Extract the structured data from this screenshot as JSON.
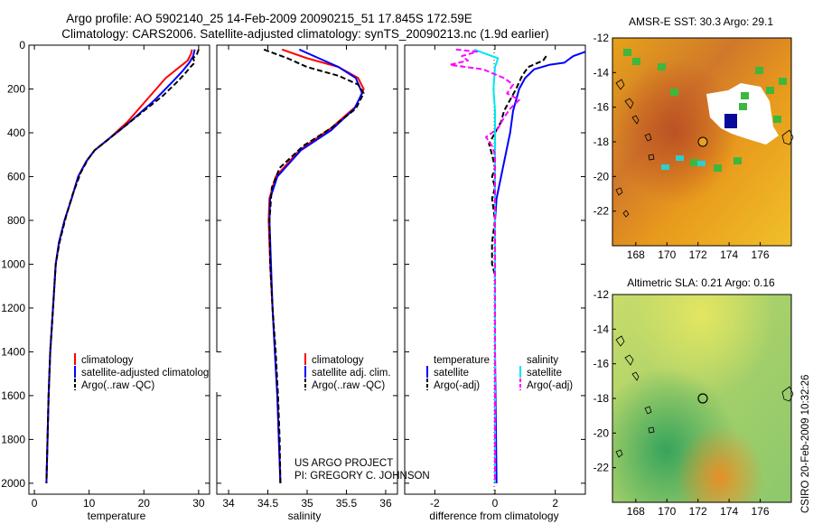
{
  "title": {
    "line1": "Argo profile: AO 5902140_25 14-Feb-2009 20090215_51 17.845S 172.59E",
    "line2": "Climatology: CARS2006. Satellite-adjusted climatology: synTS_20090213.nc (1.9d earlier)"
  },
  "side_label": "CSIRO 20-Feb-2009 10:32:26",
  "project": {
    "line1": "US ARGO PROJECT",
    "line2": "PI: GREGORY C. JOHNSON"
  },
  "colors": {
    "climatology": "#ff0000",
    "satellite": "#0000ff",
    "argo": "#000000",
    "argo_salt_adj": "#ff00ff",
    "sat_salt": "#00e5ee"
  },
  "chart_data": [
    {
      "id": "temperature",
      "type": "line",
      "xlabel": "temperature",
      "ylabel": "",
      "xlim": [
        -1,
        32
      ],
      "ylim": [
        2050,
        0
      ],
      "xticks": [
        0,
        10,
        20,
        30
      ],
      "yticks": [
        0,
        200,
        400,
        600,
        800,
        1000,
        1200,
        1400,
        1600,
        1800,
        2000
      ],
      "legend": [
        "climatology",
        "satellite-adjusted climatology",
        "Argo(..raw -QC)"
      ],
      "series": [
        {
          "name": "climatology",
          "color": "#ff0000",
          "dash": "",
          "points": [
            [
              28.8,
              20
            ],
            [
              28.6,
              40
            ],
            [
              28.0,
              70
            ],
            [
              26.5,
              100
            ],
            [
              24.0,
              150
            ],
            [
              20.5,
              250
            ],
            [
              17.0,
              350
            ],
            [
              13.5,
              430
            ],
            [
              11.0,
              480
            ],
            [
              9.5,
              530
            ],
            [
              8.0,
              600
            ],
            [
              6.8,
              700
            ],
            [
              5.5,
              800
            ],
            [
              4.5,
              900
            ],
            [
              3.9,
              1000
            ],
            [
              3.4,
              1200
            ],
            [
              2.9,
              1400
            ],
            [
              2.6,
              1600
            ],
            [
              2.4,
              1800
            ],
            [
              2.2,
              2000
            ]
          ]
        },
        {
          "name": "satellite",
          "color": "#0000ff",
          "dash": "",
          "points": [
            [
              29.3,
              20
            ],
            [
              29.0,
              50
            ],
            [
              28.3,
              80
            ],
            [
              27.0,
              120
            ],
            [
              25.5,
              160
            ],
            [
              22.0,
              250
            ],
            [
              17.0,
              360
            ],
            [
              13.5,
              430
            ],
            [
              11.0,
              480
            ],
            [
              9.5,
              530
            ],
            [
              8.0,
              600
            ],
            [
              6.8,
              700
            ],
            [
              5.5,
              800
            ],
            [
              4.5,
              900
            ],
            [
              3.9,
              1000
            ],
            [
              3.4,
              1200
            ],
            [
              2.9,
              1400
            ],
            [
              2.6,
              1600
            ],
            [
              2.4,
              1800
            ],
            [
              2.2,
              2000
            ]
          ]
        },
        {
          "name": "Argo",
          "color": "#000000",
          "dash": "6,3",
          "points": [
            [
              30.0,
              20
            ],
            [
              29.7,
              40
            ],
            [
              29.0,
              60
            ],
            [
              29.3,
              80
            ],
            [
              28.5,
              100
            ],
            [
              27.5,
              130
            ],
            [
              26.0,
              170
            ],
            [
              23.5,
              230
            ],
            [
              20.0,
              300
            ],
            [
              16.5,
              370
            ],
            [
              13.0,
              440
            ],
            [
              11.0,
              480
            ],
            [
              9.8,
              520
            ],
            [
              8.5,
              580
            ],
            [
              7.0,
              680
            ],
            [
              5.8,
              780
            ],
            [
              4.6,
              900
            ],
            [
              3.9,
              1000
            ],
            [
              3.4,
              1200
            ],
            [
              2.9,
              1400
            ],
            [
              2.6,
              1600
            ],
            [
              2.4,
              1800
            ],
            [
              2.2,
              2000
            ]
          ]
        }
      ]
    },
    {
      "id": "salinity",
      "type": "line",
      "xlabel": "salinity",
      "ylabel": "",
      "xlim": [
        33.85,
        36.15
      ],
      "ylim": [
        2050,
        0
      ],
      "xticks": [
        34,
        34.5,
        35,
        35.5,
        36
      ],
      "legend": [
        "climatology",
        "satellite adj. clim.",
        "Argo(..raw -QC)"
      ],
      "series": [
        {
          "name": "climatology",
          "color": "#ff0000",
          "dash": "",
          "points": [
            [
              34.68,
              20
            ],
            [
              35.0,
              60
            ],
            [
              35.4,
              100
            ],
            [
              35.65,
              150
            ],
            [
              35.72,
              200
            ],
            [
              35.62,
              280
            ],
            [
              35.3,
              380
            ],
            [
              34.9,
              480
            ],
            [
              34.6,
              600
            ],
            [
              34.52,
              700
            ],
            [
              34.51,
              800
            ],
            [
              34.53,
              1000
            ],
            [
              34.56,
              1200
            ],
            [
              34.59,
              1400
            ],
            [
              34.62,
              1600
            ],
            [
              34.64,
              1800
            ],
            [
              34.66,
              2000
            ]
          ]
        },
        {
          "name": "satellite",
          "color": "#0000ff",
          "dash": "",
          "points": [
            [
              34.9,
              20
            ],
            [
              35.15,
              60
            ],
            [
              35.4,
              100
            ],
            [
              35.62,
              150
            ],
            [
              35.7,
              220
            ],
            [
              35.6,
              290
            ],
            [
              35.3,
              390
            ],
            [
              34.92,
              480
            ],
            [
              34.62,
              600
            ],
            [
              34.53,
              700
            ],
            [
              34.52,
              800
            ],
            [
              34.54,
              1000
            ],
            [
              34.56,
              1200
            ],
            [
              34.59,
              1400
            ],
            [
              34.62,
              1600
            ],
            [
              34.64,
              1800
            ],
            [
              34.66,
              2000
            ]
          ]
        },
        {
          "name": "Argo",
          "color": "#000000",
          "dash": "6,3",
          "points": [
            [
              34.45,
              20
            ],
            [
              34.6,
              40
            ],
            [
              34.75,
              60
            ],
            [
              35.0,
              100
            ],
            [
              35.4,
              140
            ],
            [
              35.65,
              180
            ],
            [
              35.72,
              220
            ],
            [
              35.62,
              290
            ],
            [
              35.3,
              380
            ],
            [
              34.95,
              460
            ],
            [
              34.65,
              560
            ],
            [
              34.55,
              650
            ],
            [
              34.52,
              800
            ],
            [
              34.53,
              1000
            ],
            [
              34.56,
              1200
            ],
            [
              34.6,
              1400
            ],
            [
              34.63,
              1600
            ],
            [
              34.65,
              1800
            ],
            [
              34.66,
              2000
            ]
          ]
        }
      ]
    },
    {
      "id": "difference",
      "type": "line",
      "xlabel": "difference from climatology",
      "ylabel": "",
      "xlim": [
        -3,
        3
      ],
      "ylim": [
        2050,
        0
      ],
      "xticks": [
        -2,
        0,
        2
      ],
      "legend_titles": [
        "temperature",
        "salinity"
      ],
      "legend": [
        "satellite",
        "Argo(-adj)",
        "satellite",
        "Argo(-adj)"
      ],
      "series": [
        {
          "name": "temperature satellite",
          "color": "#0000ff",
          "dash": "",
          "points": [
            [
              3.0,
              30
            ],
            [
              2.6,
              50
            ],
            [
              2.5,
              60
            ],
            [
              2.3,
              80
            ],
            [
              1.8,
              90
            ],
            [
              1.3,
              110
            ],
            [
              1.0,
              150
            ],
            [
              0.8,
              200
            ],
            [
              0.6,
              300
            ],
            [
              0.5,
              400
            ],
            [
              0.35,
              500
            ],
            [
              0.2,
              600
            ],
            [
              0.05,
              700
            ],
            [
              0.0,
              800
            ],
            [
              0.0,
              1000
            ],
            [
              0.0,
              1400
            ],
            [
              0.05,
              2000
            ]
          ]
        },
        {
          "name": "temperature Argo",
          "color": "#000000",
          "dash": "6,3",
          "points": [
            [
              1.7,
              50
            ],
            [
              1.6,
              70
            ],
            [
              1.1,
              100
            ],
            [
              0.9,
              140
            ],
            [
              0.7,
              200
            ],
            [
              0.3,
              300
            ],
            [
              0.2,
              350
            ],
            [
              0.0,
              400
            ],
            [
              -0.2,
              450
            ],
            [
              -0.1,
              500
            ],
            [
              0.0,
              560
            ],
            [
              -0.1,
              600
            ],
            [
              0.0,
              650
            ],
            [
              -0.1,
              700
            ],
            [
              0.0,
              800
            ],
            [
              -0.1,
              900
            ],
            [
              -0.1,
              1000
            ],
            [
              0.0,
              1050
            ],
            [
              0.0,
              1400
            ],
            [
              0.0,
              2000
            ]
          ]
        },
        {
          "name": "salinity satellite",
          "color": "#00e5ee",
          "dash": "",
          "points": [
            [
              -0.7,
              20
            ],
            [
              -0.3,
              40
            ],
            [
              0.1,
              60
            ],
            [
              0.0,
              100
            ],
            [
              -0.05,
              200
            ],
            [
              0.0,
              300
            ],
            [
              0.0,
              400
            ],
            [
              0.0,
              600
            ],
            [
              0.0,
              800
            ],
            [
              0.0,
              1000
            ],
            [
              0.0,
              1500
            ],
            [
              0.0,
              2000
            ]
          ]
        },
        {
          "name": "salinity Argo",
          "color": "#ff00ff",
          "dash": "6,3",
          "points": [
            [
              -1.3,
              20
            ],
            [
              -0.6,
              30
            ],
            [
              -1.1,
              50
            ],
            [
              -0.9,
              70
            ],
            [
              -1.5,
              90
            ],
            [
              -0.4,
              110
            ],
            [
              0.3,
              150
            ],
            [
              0.6,
              180
            ],
            [
              0.4,
              220
            ],
            [
              0.8,
              250
            ],
            [
              0.5,
              290
            ],
            [
              0.3,
              330
            ],
            [
              0.1,
              380
            ],
            [
              -0.3,
              420
            ],
            [
              -0.1,
              460
            ],
            [
              0.0,
              500
            ],
            [
              0.0,
              1000
            ],
            [
              0.0,
              2000
            ]
          ]
        }
      ]
    },
    {
      "id": "sst-map",
      "type": "heatmap",
      "title": "AMSR-E SST: 30.3 Argo: 29.1",
      "xlim": [
        166.5,
        178
      ],
      "ylim": [
        -24,
        -12
      ],
      "xticks": [
        168,
        170,
        172,
        174,
        176
      ],
      "yticks": [
        -12,
        -14,
        -16,
        -18,
        -20,
        -22
      ],
      "profile_location": [
        172.59,
        -17.845
      ]
    },
    {
      "id": "sla-map",
      "type": "heatmap",
      "title": "Altimetric SLA: 0.21 Argo: 0.16",
      "xlim": [
        166.5,
        178
      ],
      "ylim": [
        -24,
        -12
      ],
      "xticks": [
        168,
        170,
        172,
        174,
        176
      ],
      "yticks": [
        -12,
        -14,
        -16,
        -18,
        -20,
        -22
      ],
      "profile_location": [
        172.59,
        -17.845
      ]
    }
  ]
}
